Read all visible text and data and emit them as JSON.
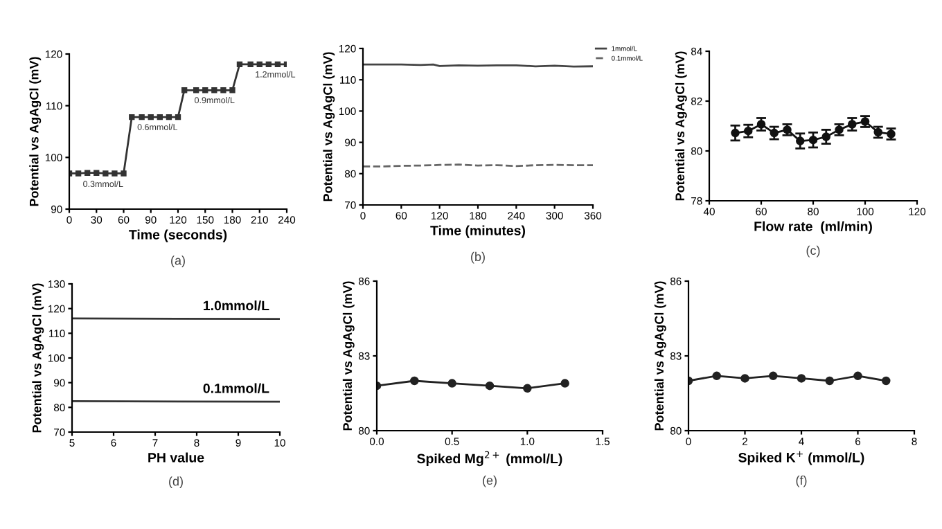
{
  "chart_data": [
    {
      "type": "line",
      "xlabel": "Time (seconds)",
      "ylabel": "Potential vs AgAgCl (mV)",
      "xlim": [
        0,
        240
      ],
      "xticks": [
        0,
        30,
        60,
        90,
        120,
        150,
        180,
        210,
        240
      ],
      "ylim": [
        90,
        120
      ],
      "yticks": [
        90,
        100,
        110,
        120
      ],
      "marker": "square",
      "x": [
        0,
        10,
        20,
        30,
        40,
        50,
        60,
        69,
        80,
        90,
        100,
        110,
        120,
        127,
        140,
        150,
        160,
        170,
        180,
        188,
        200,
        210,
        220,
        230,
        240
      ],
      "series": [
        {
          "color": "#333333",
          "values": [
            96.9,
            96.9,
            97.0,
            97.0,
            96.9,
            96.9,
            96.9,
            107.8,
            107.8,
            107.8,
            107.8,
            107.8,
            107.8,
            113.0,
            113.0,
            113.0,
            113.0,
            113.0,
            113.0,
            118.0,
            118.0,
            118.0,
            118.0,
            118.0,
            118.0
          ]
        }
      ],
      "annotations": [
        {
          "text": "0.3mmol/L",
          "x": 15,
          "y": 95.5
        },
        {
          "text": "0.6mmol/L",
          "x": 75,
          "y": 106.5
        },
        {
          "text": "0.9mmol/L",
          "x": 138,
          "y": 111.7
        },
        {
          "text": "1.2mmol/L",
          "x": 205,
          "y": 116.7
        },
        "(a)"
      ]
    },
    {
      "type": "line",
      "xlabel": "Time (minutes)",
      "ylabel": "Potential vs AgAgCl (mV)",
      "xlim": [
        0,
        360
      ],
      "xticks": [
        0,
        60,
        120,
        180,
        240,
        300,
        360
      ],
      "ylim": [
        70,
        120
      ],
      "yticks": [
        70,
        80,
        90,
        100,
        110,
        120
      ],
      "legend": "right",
      "x": [
        0,
        30,
        60,
        90,
        110,
        120,
        150,
        180,
        210,
        240,
        270,
        300,
        330,
        360
      ],
      "series": [
        {
          "name": "1mmol/L",
          "color": "#444444",
          "line_style": "solid",
          "values": [
            114.9,
            114.9,
            114.9,
            114.7,
            114.9,
            114.4,
            114.6,
            114.5,
            114.6,
            114.6,
            114.3,
            114.5,
            114.2,
            114.3
          ]
        },
        {
          "name": "0.1mmol/L",
          "color": "#666666",
          "line_style": "dashed",
          "values": [
            82.3,
            82.3,
            82.5,
            82.6,
            82.7,
            82.8,
            82.9,
            82.6,
            82.7,
            82.4,
            82.7,
            82.8,
            82.7,
            82.7
          ]
        }
      ],
      "annotations": [
        "(b)"
      ]
    },
    {
      "type": "line",
      "xlabel": "Flow rate  (ml/min)",
      "ylabel": "Potential vs AgAgCl (mV)",
      "xlim": [
        40,
        120
      ],
      "xticks": [
        40,
        60,
        80,
        100,
        120
      ],
      "ylim": [
        78,
        84
      ],
      "yticks": [
        78,
        80,
        82,
        84
      ],
      "marker": "circle",
      "x": [
        50,
        55,
        60,
        65,
        70,
        75,
        80,
        85,
        90,
        95,
        100,
        105,
        110
      ],
      "series": [
        {
          "color": "#111111",
          "values": [
            80.72,
            80.8,
            81.07,
            80.72,
            80.85,
            80.4,
            80.44,
            80.57,
            80.85,
            81.07,
            81.18,
            80.75,
            80.68
          ],
          "errors": [
            0.3,
            0.25,
            0.25,
            0.25,
            0.22,
            0.3,
            0.3,
            0.28,
            0.22,
            0.25,
            0.22,
            0.22,
            0.22
          ]
        }
      ],
      "annotations": [
        "(c)"
      ]
    },
    {
      "type": "line",
      "xlabel": "PH value",
      "ylabel": "Potential vs AgAgCl (mV)",
      "xlim": [
        5,
        10
      ],
      "xticks": [
        5,
        6,
        7,
        8,
        9,
        10
      ],
      "ylim": [
        70,
        130
      ],
      "yticks": [
        70,
        80,
        90,
        100,
        110,
        120,
        130
      ],
      "x": [
        5,
        10
      ],
      "series": [
        {
          "name": "1.0mmol/L",
          "color": "#333333",
          "values": [
            116.0,
            115.8
          ]
        },
        {
          "name": "0.1mmol/L",
          "color": "#333333",
          "values": [
            82.5,
            82.3
          ]
        }
      ],
      "annotations": [
        "(d)"
      ]
    },
    {
      "type": "line",
      "xlabel": "Spiked Mg$^{2+}$ (mmol/L)",
      "ylabel": "Potential vs AgAgCl (mV)",
      "xlim": [
        0,
        1.5
      ],
      "xticks": [
        {
          "value": 0,
          "label": "0.0"
        },
        0.5,
        {
          "value": 1,
          "label": "1.0"
        },
        1.5
      ],
      "ylim": [
        80,
        86
      ],
      "yticks": [
        80,
        83,
        86
      ],
      "marker": "circle",
      "x": [
        0,
        0.25,
        0.5,
        0.75,
        1.0,
        1.25
      ],
      "series": [
        {
          "color": "#222222",
          "values": [
            81.8,
            82.0,
            81.9,
            81.8,
            81.7,
            81.9
          ]
        }
      ],
      "annotations": [
        "(e)"
      ]
    },
    {
      "type": "line",
      "xlabel": "Spiked K$^{+}$ (mmol/L)",
      "ylabel": "Potential vs AgAgCl (mV)",
      "xlim": [
        0,
        8
      ],
      "xticks": [
        0,
        2,
        4,
        6,
        8
      ],
      "ylim": [
        80,
        86
      ],
      "yticks": [
        80,
        83,
        86
      ],
      "marker": "circle",
      "x": [
        0,
        1,
        2,
        3,
        4,
        5,
        6,
        7
      ],
      "series": [
        {
          "color": "#222222",
          "values": [
            82.0,
            82.2,
            82.1,
            82.2,
            82.1,
            82.0,
            82.2,
            82.0
          ]
        }
      ],
      "annotations": [
        "(f)"
      ]
    }
  ]
}
